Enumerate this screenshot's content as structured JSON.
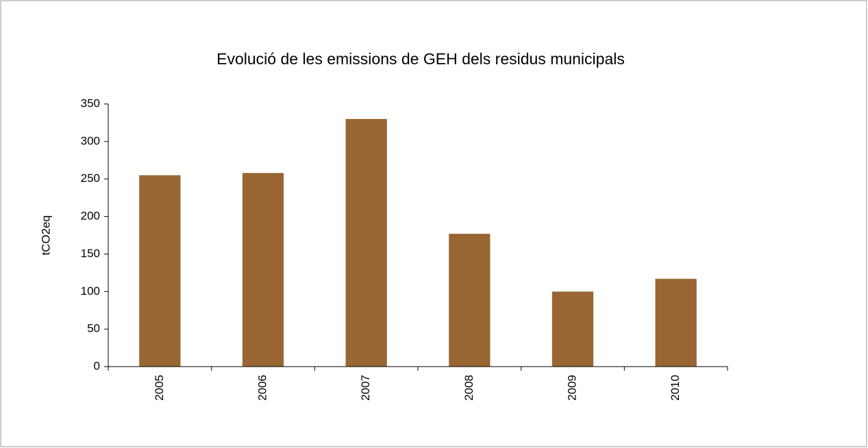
{
  "chart_data": {
    "type": "bar",
    "title": "Evolució de les emissions de GEH dels residus municipals",
    "y_label": "tCO2eq",
    "categories": [
      "2005",
      "2006",
      "2007",
      "2008",
      "2009",
      "2010"
    ],
    "values": [
      255,
      258,
      330,
      177,
      100,
      117
    ],
    "color": "#996633",
    "ylim": [
      0,
      350
    ],
    "yticks": [
      0,
      50,
      100,
      150,
      200,
      250,
      300,
      350
    ],
    "grid": false
  }
}
